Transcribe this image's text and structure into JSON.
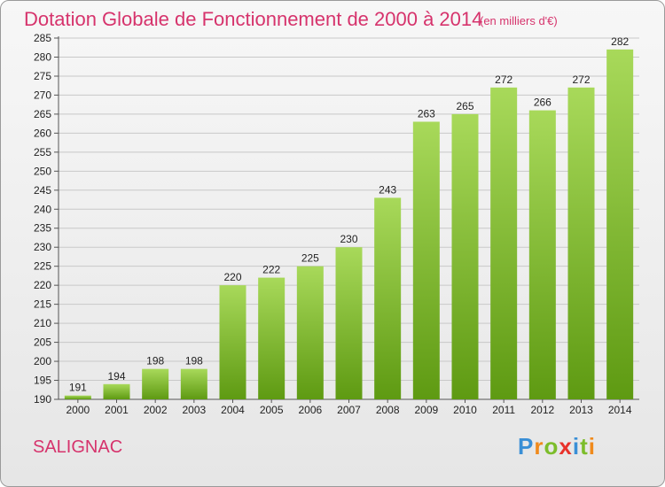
{
  "title": "Dotation Globale de Fonctionnement de 2000 à 2014",
  "unit": "(en milliers d'€)",
  "commune": "SALIGNAC",
  "logo": {
    "letters": [
      {
        "ch": "P",
        "color": "#3a8fd6"
      },
      {
        "ch": "r",
        "color": "#f08a1c"
      },
      {
        "ch": "o",
        "color": "#7cbd2b"
      },
      {
        "ch": "x",
        "color": "#e8322b"
      },
      {
        "ch": "i",
        "color": "#3a8fd6"
      },
      {
        "ch": "t",
        "color": "#7cbd2b"
      },
      {
        "ch": "i",
        "color": "#f08a1c"
      }
    ]
  },
  "colors": {
    "bar_light": "#a8d95a",
    "bar_dark": "#5e9a12",
    "grid": "#c8c8c8",
    "title": "#d6336c"
  },
  "chart_data": {
    "type": "bar",
    "categories": [
      "2000",
      "2001",
      "2002",
      "2003",
      "2004",
      "2005",
      "2006",
      "2007",
      "2008",
      "2009",
      "2010",
      "2011",
      "2012",
      "2013",
      "2014"
    ],
    "values": [
      191,
      194,
      198,
      198,
      220,
      222,
      225,
      230,
      243,
      263,
      265,
      272,
      266,
      272,
      282
    ],
    "ylim": [
      190,
      285
    ],
    "yticks": [
      190,
      195,
      200,
      205,
      210,
      215,
      220,
      225,
      230,
      235,
      240,
      245,
      250,
      255,
      260,
      265,
      270,
      275,
      280,
      285
    ],
    "grid": true
  }
}
